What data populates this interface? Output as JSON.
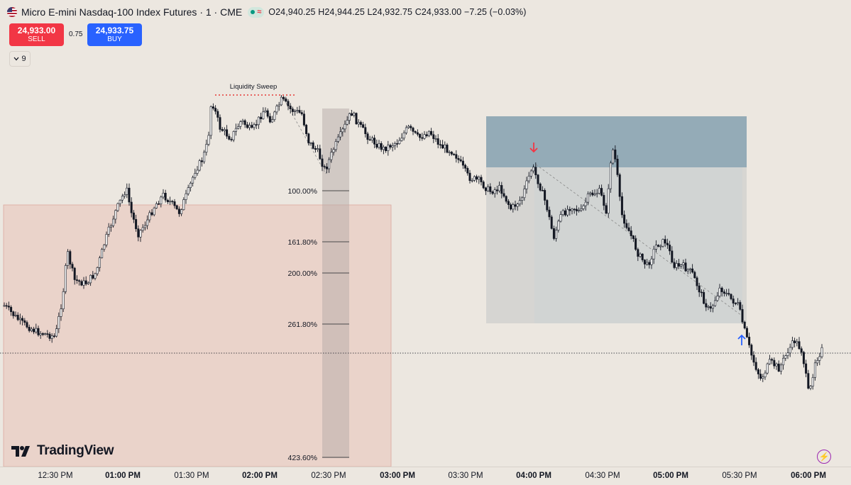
{
  "legend": {
    "symbol_title": "Micro E-mini Nasdaq-100 Index Futures · 1 · CME",
    "open": "O24,940.25",
    "high": "H24,944.25",
    "low": "L24,932.75",
    "close": "C24,933.00",
    "change": "−7.25 (−0.03%)",
    "market_status": "green",
    "flag_icon": "us-flag-icon"
  },
  "trade": {
    "sell_price": "24,933.00",
    "sell_label": "SELL",
    "spread": "0.75",
    "buy_price": "24,933.75",
    "buy_label": "BUY"
  },
  "indicators": {
    "count": "9"
  },
  "annotations": {
    "liquidity_sweep": "Liquidity Sweep"
  },
  "fib_levels": [
    "100.00%",
    "161.80%",
    "200.00%",
    "261.80%",
    "423.60%"
  ],
  "time_axis": [
    {
      "label": "12:30 PM",
      "bold": false
    },
    {
      "label": "01:00 PM",
      "bold": true
    },
    {
      "label": "01:30 PM",
      "bold": false
    },
    {
      "label": "02:00 PM",
      "bold": true
    },
    {
      "label": "02:30 PM",
      "bold": false
    },
    {
      "label": "03:00 PM",
      "bold": true
    },
    {
      "label": "03:30 PM",
      "bold": false
    },
    {
      "label": "04:00 PM",
      "bold": true
    },
    {
      "label": "04:30 PM",
      "bold": false
    },
    {
      "label": "05:00 PM",
      "bold": true
    },
    {
      "label": "05:30 PM",
      "bold": false
    },
    {
      "label": "06:00 PM",
      "bold": true
    }
  ],
  "branding": {
    "logo_text": "TradingView"
  },
  "colors": {
    "background": "#ece7e0",
    "candle": "#131722",
    "sell": "#f23645",
    "buy": "#2962ff",
    "pink_zone": "#e9c7bf",
    "blue_zone_top": "#7e9cad",
    "blue_zone_bottom": "#c3c9cc",
    "arrow_down": "#f23645",
    "arrow_up": "#2962ff"
  },
  "chart_data": {
    "type": "candlestick",
    "interval": "1",
    "last_close": 24933.0,
    "price_path": [
      {
        "time": "12:25 PM",
        "close": 24960
      },
      {
        "time": "12:35 PM",
        "close": 24943
      },
      {
        "time": "12:40 PM",
        "close": 24950
      },
      {
        "time": "12:48 PM",
        "close": 25035
      },
      {
        "time": "12:55 PM",
        "close": 25018
      },
      {
        "time": "01:05 PM",
        "close": 25098
      },
      {
        "time": "01:10 PM",
        "close": 25132
      },
      {
        "time": "01:15 PM",
        "close": 25092
      },
      {
        "time": "01:25 PM",
        "close": 25125
      },
      {
        "time": "01:35 PM",
        "close": 25150
      },
      {
        "time": "01:40 PM",
        "close": 25228
      },
      {
        "time": "01:50 PM",
        "close": 25198
      },
      {
        "time": "02:00 PM",
        "close": 25212
      },
      {
        "time": "02:05 PM",
        "close": 25230
      },
      {
        "time": "02:15 PM",
        "close": 25196
      },
      {
        "time": "02:25 PM",
        "close": 25160
      },
      {
        "time": "02:35 PM",
        "close": 25200
      },
      {
        "time": "02:40 PM",
        "close": 25218
      },
      {
        "time": "03:00 PM",
        "close": 25188
      },
      {
        "time": "03:05 PM",
        "close": 25208
      },
      {
        "time": "03:15 PM",
        "close": 25190
      },
      {
        "time": "03:25 PM",
        "close": 25150
      },
      {
        "time": "03:30 PM",
        "close": 25134
      },
      {
        "time": "03:40 PM",
        "close": 25118
      },
      {
        "time": "03:55 PM",
        "close": 25140
      },
      {
        "time": "04:00 PM",
        "close": 25158
      },
      {
        "time": "04:05 PM",
        "close": 25128
      },
      {
        "time": "04:10 PM",
        "close": 25086
      },
      {
        "time": "04:20 PM",
        "close": 25112
      },
      {
        "time": "04:30 PM",
        "close": 25138
      },
      {
        "time": "04:35 PM",
        "close": 25182
      },
      {
        "time": "04:40 PM",
        "close": 25102
      },
      {
        "time": "04:50 PM",
        "close": 25058
      },
      {
        "time": "05:05 PM",
        "close": 25058
      },
      {
        "time": "05:15 PM",
        "close": 25028
      },
      {
        "time": "05:25 PM",
        "close": 25002
      },
      {
        "time": "05:35 PM",
        "close": 24980
      },
      {
        "time": "05:45 PM",
        "close": 24918
      },
      {
        "time": "05:50 PM",
        "close": 24928
      },
      {
        "time": "05:55 PM",
        "close": 24912
      },
      {
        "time": "06:00 PM",
        "close": 24942
      },
      {
        "time": "06:05 PM",
        "close": 24933
      }
    ]
  }
}
